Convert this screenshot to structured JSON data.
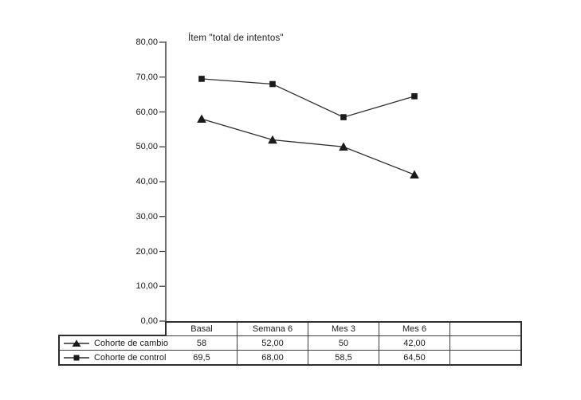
{
  "chart_data": {
    "type": "line",
    "title": "Ítem \"total de intentos\"",
    "categories": [
      "Basal",
      "Semana 6",
      "Mes 3",
      "Mes 6"
    ],
    "series": [
      {
        "name": "Cohorte de cambio",
        "marker": "triangle",
        "values": [
          58,
          52,
          50,
          42
        ],
        "value_labels": [
          "58",
          "52,00",
          "50",
          "42,00"
        ]
      },
      {
        "name": "Cohorte de control",
        "marker": "square",
        "values": [
          69.5,
          68,
          58.5,
          64.5
        ],
        "value_labels": [
          "69,5",
          "68,00",
          "58,5",
          "64,50"
        ]
      }
    ],
    "xlabel": "",
    "ylabel": "",
    "ylim": [
      0,
      80
    ],
    "y_tick_step": 10,
    "y_tick_labels": [
      "80,00",
      "70,00",
      "60,00",
      "50,00",
      "40,00",
      "30,00",
      "20,00",
      "10,00",
      "0,00"
    ],
    "grid": false,
    "legend_position": "data-table-left",
    "line_color": "#2e2e2e",
    "marker_color": "#1a1a1a",
    "text_color": "#1a1a1a"
  },
  "table": {
    "column_headers": [
      "Basal",
      "Semana 6",
      "Mes 3",
      "Mes 6",
      ""
    ],
    "rows": [
      {
        "legend": "Cohorte de cambio",
        "marker": "triangle",
        "cells": [
          "58",
          "52,00",
          "50",
          "42,00",
          ""
        ]
      },
      {
        "legend": "Cohorte de control",
        "marker": "square",
        "cells": [
          "69,5",
          "68,00",
          "58,5",
          "64,50",
          ""
        ]
      }
    ]
  }
}
